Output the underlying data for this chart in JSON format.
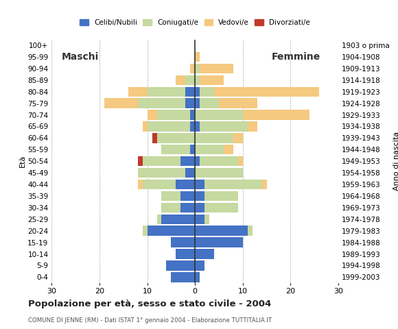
{
  "age_groups": [
    "0-4",
    "5-9",
    "10-14",
    "15-19",
    "20-24",
    "25-29",
    "30-34",
    "35-39",
    "40-44",
    "45-49",
    "50-54",
    "55-59",
    "60-64",
    "65-69",
    "70-74",
    "75-79",
    "80-84",
    "85-89",
    "90-94",
    "95-99",
    "100+"
  ],
  "birth_years": [
    "1999-2003",
    "1994-1998",
    "1989-1993",
    "1984-1988",
    "1979-1983",
    "1974-1978",
    "1969-1973",
    "1964-1968",
    "1959-1963",
    "1954-1958",
    "1949-1953",
    "1944-1948",
    "1939-1943",
    "1934-1938",
    "1929-1933",
    "1924-1928",
    "1919-1923",
    "1914-1918",
    "1909-1913",
    "1904-1908",
    "1903 o prima"
  ],
  "males": {
    "celibi": [
      5,
      6,
      4,
      5,
      10,
      7,
      3,
      3,
      4,
      2,
      3,
      1,
      0,
      1,
      1,
      2,
      2,
      0,
      0,
      0,
      0
    ],
    "coniugati": [
      0,
      0,
      0,
      0,
      1,
      1,
      4,
      4,
      7,
      10,
      8,
      6,
      8,
      9,
      7,
      10,
      8,
      2,
      0,
      0,
      0
    ],
    "vedovi": [
      0,
      0,
      0,
      0,
      0,
      0,
      0,
      0,
      1,
      0,
      0,
      0,
      0,
      1,
      2,
      7,
      4,
      2,
      1,
      0,
      0
    ],
    "divorziati": [
      0,
      0,
      0,
      0,
      0,
      0,
      0,
      0,
      0,
      0,
      1,
      0,
      1,
      0,
      0,
      0,
      0,
      0,
      0,
      0,
      0
    ]
  },
  "females": {
    "nubili": [
      1,
      2,
      4,
      10,
      11,
      2,
      2,
      2,
      2,
      0,
      1,
      0,
      0,
      1,
      0,
      1,
      1,
      0,
      0,
      0,
      0
    ],
    "coniugate": [
      0,
      0,
      0,
      0,
      1,
      1,
      7,
      7,
      12,
      10,
      8,
      6,
      8,
      10,
      10,
      4,
      3,
      1,
      1,
      0,
      0
    ],
    "vedove": [
      0,
      0,
      0,
      0,
      0,
      0,
      0,
      0,
      1,
      0,
      1,
      2,
      2,
      2,
      14,
      8,
      22,
      5,
      7,
      1,
      0
    ],
    "divorziate": [
      0,
      0,
      0,
      0,
      0,
      0,
      0,
      0,
      0,
      0,
      0,
      0,
      0,
      0,
      0,
      0,
      0,
      0,
      0,
      0,
      0
    ]
  },
  "colors": {
    "celibi_nubili": "#4472c4",
    "coniugati": "#c5d9a0",
    "vedovi": "#f5c97f",
    "divorziati": "#c0392b"
  },
  "xlim": 30,
  "title": "Popolazione per età, sesso e stato civile - 2004",
  "subtitle": "COMUNE DI JENNE (RM) - Dati ISTAT 1° gennaio 2004 - Elaborazione TUTTITALIA.IT",
  "ylabel_left": "Età",
  "ylabel_right": "Anno di nascita",
  "label_maschi": "Maschi",
  "label_femmine": "Femmine",
  "legend_labels": [
    "Celibi/Nubili",
    "Coniugati/e",
    "Vedovi/e",
    "Divorziati/e"
  ],
  "background_color": "#ffffff",
  "grid_color": "#aaaaaa"
}
